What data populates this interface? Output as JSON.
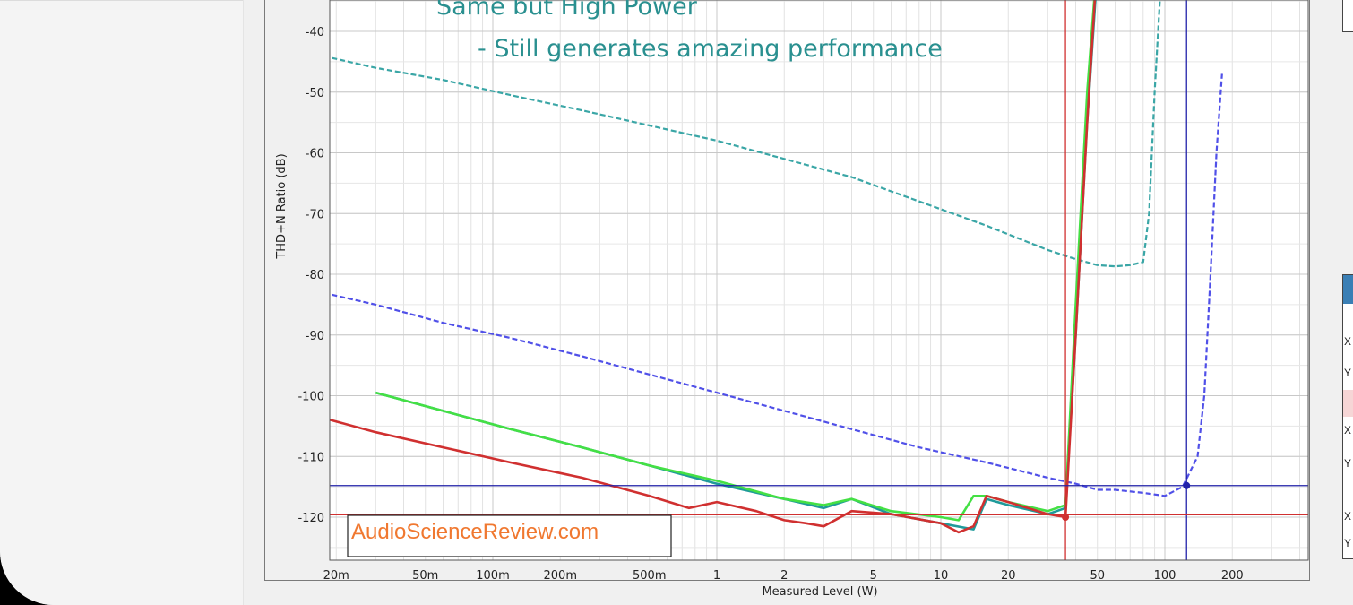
{
  "chart_data": {
    "type": "line",
    "title": "",
    "annotations": [
      {
        "text": "Same but High Power",
        "color": "#2a9090"
      },
      {
        "text": "- Still generates amazing performance",
        "color": "#2a9090"
      }
    ],
    "watermark": "AudioScienceReview.com",
    "xlabel": "Measured Level (W)",
    "ylabel": "THD+N Ratio (dB)",
    "x_scale": "log",
    "xlim": [
      0.015,
      350
    ],
    "ylim": [
      -127,
      -30
    ],
    "x_ticks": [
      {
        "value": 0.02,
        "label": "20m"
      },
      {
        "value": 0.05,
        "label": "50m"
      },
      {
        "value": 0.1,
        "label": "100m"
      },
      {
        "value": 0.2,
        "label": "200m"
      },
      {
        "value": 0.5,
        "label": "500m"
      },
      {
        "value": 1,
        "label": "1"
      },
      {
        "value": 2,
        "label": "2"
      },
      {
        "value": 5,
        "label": "5"
      },
      {
        "value": 10,
        "label": "10"
      },
      {
        "value": 20,
        "label": "20"
      },
      {
        "value": 50,
        "label": "50"
      },
      {
        "value": 100,
        "label": "100"
      },
      {
        "value": 200,
        "label": "200"
      }
    ],
    "y_ticks": [
      {
        "value": -40,
        "label": "-40"
      },
      {
        "value": -50,
        "label": "-50"
      },
      {
        "value": -60,
        "label": "-60"
      },
      {
        "value": -70,
        "label": "-70"
      },
      {
        "value": -80,
        "label": "-80"
      },
      {
        "value": -90,
        "label": "-90"
      },
      {
        "value": -100,
        "label": "-100"
      },
      {
        "value": -110,
        "label": "-110"
      },
      {
        "value": -120,
        "label": "-120"
      }
    ],
    "grid": true,
    "series": [
      {
        "color": "#3aa6a6",
        "dash": true,
        "width": 2.2,
        "x": [
          0.015,
          0.03,
          0.06,
          0.12,
          0.25,
          0.5,
          1,
          2,
          4,
          8,
          16,
          30,
          40,
          50,
          60,
          70,
          80,
          85,
          90,
          95,
          100
        ],
        "y": [
          -43.5,
          -46,
          -48,
          -50.5,
          -53,
          -55.5,
          -58,
          -61,
          -64,
          -68,
          -72,
          -76,
          -77.5,
          -78.5,
          -78.7,
          -78.5,
          -78,
          -70,
          -50,
          -35,
          -28
        ]
      },
      {
        "color": "#5050e8",
        "dash": true,
        "width": 2.2,
        "x": [
          0.015,
          0.03,
          0.06,
          0.12,
          0.25,
          0.5,
          1,
          2,
          4,
          8,
          16,
          30,
          40,
          50,
          60,
          80,
          100,
          120,
          140,
          150,
          160,
          170,
          180
        ],
        "y": [
          -82.5,
          -85,
          -88,
          -90.5,
          -93.5,
          -96.5,
          -99.5,
          -102.5,
          -105.5,
          -108.5,
          -111,
          -113.5,
          -114.5,
          -115.5,
          -115.5,
          -116,
          -116.5,
          -115,
          -110,
          -100,
          -80,
          -60,
          -47
        ]
      },
      {
        "color": "#1f9a9a",
        "dash": false,
        "width": 2.6,
        "x": [
          0.03,
          0.06,
          0.12,
          0.25,
          0.5,
          1,
          2,
          3,
          4,
          6,
          10,
          14,
          16,
          20,
          30,
          36,
          40,
          45,
          50
        ],
        "y": [
          -99.5,
          -102.5,
          -105.5,
          -108.5,
          -111.5,
          -114.5,
          -117,
          -118.5,
          -117,
          -119.5,
          -121,
          -122,
          -117,
          -118,
          -119.5,
          -118.5,
          -90,
          -55,
          -30
        ]
      },
      {
        "color": "#44e044",
        "dash": false,
        "width": 2.6,
        "x": [
          0.03,
          0.06,
          0.12,
          0.25,
          0.5,
          1,
          2,
          3,
          4,
          6,
          10,
          12,
          14,
          16,
          20,
          30,
          36,
          40,
          45,
          50
        ],
        "y": [
          -99.5,
          -102.5,
          -105.5,
          -108.5,
          -111.5,
          -114,
          -117,
          -118,
          -117,
          -119,
          -120,
          -120.5,
          -116.5,
          -116.5,
          -117.5,
          -119,
          -118,
          -85,
          -50,
          -28
        ]
      },
      {
        "color": "#d03030",
        "dash": false,
        "width": 2.6,
        "x": [
          0.015,
          0.03,
          0.06,
          0.12,
          0.25,
          0.5,
          0.75,
          1,
          1.5,
          2,
          2.5,
          3,
          4,
          6,
          10,
          12,
          14,
          16,
          20,
          30,
          36,
          40,
          45,
          50
        ],
        "y": [
          -103,
          -106,
          -108.5,
          -111,
          -113.5,
          -116.5,
          -118.5,
          -117.5,
          -119,
          -120.5,
          -121,
          -121.5,
          -119,
          -119.5,
          -121,
          -122.5,
          -121.5,
          -116.5,
          -117.5,
          -119.5,
          -120,
          -90,
          -55,
          -28
        ]
      }
    ],
    "cursors": {
      "vertical": [
        {
          "x": 36,
          "color": "#d03030"
        },
        {
          "x": 125,
          "color": "#2222aa"
        }
      ],
      "horizontal": [
        {
          "y": -114.8,
          "color": "#2222aa"
        },
        {
          "y": -119.6,
          "color": "#d03030"
        }
      ],
      "markers": [
        {
          "x": 36,
          "y": -120,
          "color": "#d03030"
        },
        {
          "x": 125,
          "y": -114.8,
          "color": "#2222aa"
        }
      ]
    }
  },
  "right_panel": {
    "letters": [
      "X",
      "Y",
      "X",
      "Y",
      "X",
      "Y"
    ]
  }
}
